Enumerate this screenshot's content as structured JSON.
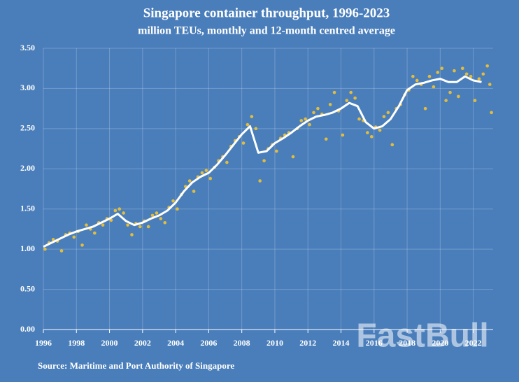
{
  "chart_data": {
    "type": "combo",
    "title": "Singapore container throughput, 1996-2023",
    "subtitle": "million TEUs, monthly and 12-month centred average",
    "source": "Source: Maritime and Port Authority of Singapore",
    "watermark": "FastBull",
    "xlim": [
      1996,
      2023.2
    ],
    "xticks": [
      1996,
      1998,
      2000,
      2002,
      2004,
      2006,
      2008,
      2010,
      2012,
      2014,
      2016,
      2018,
      2020,
      2022
    ],
    "ylim": [
      0,
      3.5
    ],
    "yticks": [
      {
        "value": 0,
        "label": "0.00"
      },
      {
        "value": 0.5,
        "label": "0.50"
      },
      {
        "value": 1,
        "label": "1.00"
      },
      {
        "value": 1.5,
        "label": "1.50"
      },
      {
        "value": 2,
        "label": "2.00"
      },
      {
        "value": 2.5,
        "label": "2.50"
      },
      {
        "value": 3,
        "label": "3.00"
      },
      {
        "value": 3.5,
        "label": "3.50"
      }
    ],
    "grid": true,
    "series": [
      {
        "type": "scatter",
        "color": "#e3bd3a",
        "x": [
          1996.1,
          1996.35,
          1996.6,
          1996.85,
          1997.1,
          1997.35,
          1997.6,
          1997.85,
          1998.1,
          1998.35,
          1998.6,
          1998.85,
          1999.1,
          1999.35,
          1999.6,
          1999.85,
          2000.1,
          2000.35,
          2000.6,
          2000.85,
          2001.1,
          2001.35,
          2001.6,
          2001.85,
          2002.1,
          2002.35,
          2002.6,
          2002.85,
          2003.1,
          2003.35,
          2003.6,
          2003.85,
          2004.1,
          2004.35,
          2004.6,
          2004.85,
          2005.1,
          2005.35,
          2005.6,
          2005.85,
          2006.1,
          2006.35,
          2006.6,
          2006.85,
          2007.1,
          2007.35,
          2007.6,
          2007.85,
          2008.1,
          2008.35,
          2008.6,
          2008.85,
          2009.1,
          2009.35,
          2009.6,
          2009.85,
          2010.1,
          2010.35,
          2010.6,
          2010.85,
          2011.1,
          2011.35,
          2011.6,
          2011.85,
          2012.1,
          2012.35,
          2012.6,
          2012.85,
          2013.1,
          2013.35,
          2013.6,
          2013.85,
          2014.1,
          2014.35,
          2014.6,
          2014.85,
          2015.1,
          2015.35,
          2015.6,
          2015.85,
          2016.1,
          2016.35,
          2016.6,
          2016.85,
          2017.1,
          2017.35,
          2017.6,
          2017.85,
          2018.1,
          2018.35,
          2018.6,
          2018.85,
          2019.1,
          2019.35,
          2019.6,
          2019.85,
          2020.1,
          2020.35,
          2020.6,
          2020.85,
          2021.1,
          2021.35,
          2021.6,
          2021.85,
          2022.1,
          2022.35,
          2022.6,
          2022.85,
          2023.0,
          2023.1
        ],
        "values": [
          1.0,
          1.08,
          1.12,
          1.1,
          0.98,
          1.18,
          1.2,
          1.15,
          1.22,
          1.05,
          1.3,
          1.25,
          1.2,
          1.33,
          1.3,
          1.38,
          1.36,
          1.48,
          1.5,
          1.45,
          1.3,
          1.18,
          1.32,
          1.28,
          1.35,
          1.28,
          1.42,
          1.45,
          1.38,
          1.33,
          1.52,
          1.6,
          1.5,
          1.68,
          1.78,
          1.85,
          1.72,
          1.9,
          1.95,
          1.98,
          1.88,
          2.02,
          2.1,
          2.15,
          2.08,
          2.28,
          2.35,
          2.4,
          2.32,
          2.55,
          2.65,
          2.5,
          1.85,
          2.1,
          2.25,
          2.3,
          2.22,
          2.38,
          2.42,
          2.45,
          2.15,
          2.5,
          2.6,
          2.62,
          2.55,
          2.7,
          2.75,
          2.68,
          2.37,
          2.8,
          2.95,
          2.72,
          2.42,
          2.85,
          2.95,
          2.88,
          2.62,
          2.6,
          2.45,
          2.4,
          2.52,
          2.48,
          2.65,
          2.7,
          2.3,
          2.75,
          2.8,
          2.92,
          2.98,
          3.15,
          3.1,
          3.05,
          2.75,
          3.15,
          3.02,
          3.2,
          3.25,
          2.85,
          2.95,
          3.22,
          2.9,
          3.25,
          3.18,
          3.15,
          2.85,
          3.12,
          3.18,
          3.28,
          3.05,
          2.7
        ]
      },
      {
        "type": "line",
        "color": "#ffffff",
        "x": [
          1996,
          1996.5,
          1997,
          1997.5,
          1998,
          1998.5,
          1999,
          1999.5,
          2000,
          2000.5,
          2001,
          2001.5,
          2002,
          2002.5,
          2003,
          2003.5,
          2004,
          2004.5,
          2005,
          2005.5,
          2006,
          2006.5,
          2007,
          2007.5,
          2008,
          2008.5,
          2009,
          2009.5,
          2010,
          2010.5,
          2011,
          2011.5,
          2012,
          2012.5,
          2013,
          2013.5,
          2014,
          2014.5,
          2015,
          2015.5,
          2016,
          2016.5,
          2017,
          2017.5,
          2018,
          2018.5,
          2019,
          2019.5,
          2020,
          2020.5,
          2021,
          2021.5,
          2022,
          2022.5
        ],
        "values": [
          1.03,
          1.08,
          1.13,
          1.18,
          1.22,
          1.25,
          1.28,
          1.33,
          1.38,
          1.44,
          1.35,
          1.3,
          1.33,
          1.38,
          1.42,
          1.48,
          1.58,
          1.72,
          1.83,
          1.9,
          1.95,
          2.05,
          2.17,
          2.3,
          2.43,
          2.53,
          2.2,
          2.22,
          2.32,
          2.38,
          2.45,
          2.53,
          2.6,
          2.65,
          2.67,
          2.7,
          2.75,
          2.82,
          2.78,
          2.58,
          2.5,
          2.53,
          2.62,
          2.78,
          2.98,
          3.05,
          3.07,
          3.1,
          3.12,
          3.08,
          3.08,
          3.15,
          3.1,
          3.08
        ]
      }
    ]
  }
}
